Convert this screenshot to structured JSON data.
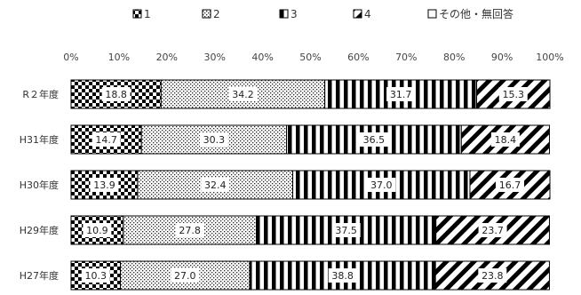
{
  "chart_data": {
    "type": "bar",
    "orientation": "horizontal",
    "stacked": true,
    "categories": [
      "R２年度",
      "H31年度",
      "H30年度",
      "H29年度",
      "H27年度"
    ],
    "series": [
      {
        "name": "1",
        "values": [
          18.8,
          14.7,
          13.9,
          10.9,
          10.3
        ],
        "pattern": "checker"
      },
      {
        "name": "2",
        "values": [
          34.2,
          30.3,
          32.4,
          27.8,
          27.0
        ],
        "pattern": "dots"
      },
      {
        "name": "3",
        "values": [
          31.7,
          36.5,
          37.0,
          37.5,
          38.8
        ],
        "pattern": "vertical"
      },
      {
        "name": "4",
        "values": [
          15.3,
          18.4,
          16.7,
          23.7,
          23.8
        ],
        "pattern": "diagonal"
      },
      {
        "name": "その他・無回答",
        "values": [
          0,
          0,
          0,
          0,
          0
        ],
        "pattern": "none"
      }
    ],
    "xlim": [
      0,
      100
    ],
    "xticks": [
      "0%",
      "10%",
      "20%",
      "30%",
      "40%",
      "50%",
      "60%",
      "70%",
      "80%",
      "90%",
      "100%"
    ],
    "grid": false,
    "legend_position": "top"
  }
}
